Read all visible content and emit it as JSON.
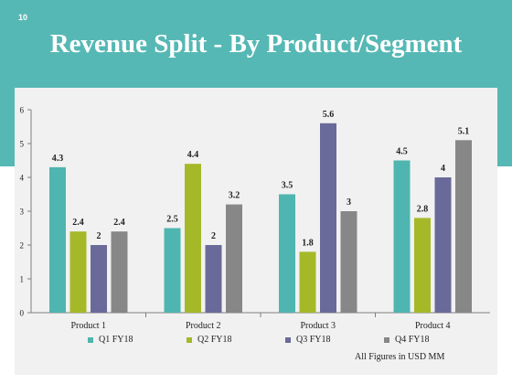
{
  "slide": {
    "number": "10",
    "title": "Revenue Split - By Product/Segment",
    "footnote": "All Figures in USD MM"
  },
  "colors": {
    "header": "#56b8b4",
    "panel": "#f1f1f1"
  },
  "chart_data": {
    "type": "bar",
    "title": "",
    "xlabel": "",
    "ylabel": "",
    "categories": [
      "Product 1",
      "Product 2",
      "Product 3",
      "Product 4"
    ],
    "ylim": [
      0,
      6
    ],
    "yticks": [
      "0",
      "1",
      "2",
      "3",
      "4",
      "5",
      "6"
    ],
    "grid": false,
    "legend_position": "bottom",
    "series": [
      {
        "name": "Q1 FY18",
        "color": "#4fb5b0",
        "values": [
          4.3,
          2.5,
          3.5,
          4.5
        ],
        "labels": [
          "4.3",
          "2.5",
          "3.5",
          "4.5"
        ]
      },
      {
        "name": "Q2 FY18",
        "color": "#a5b928",
        "values": [
          2.4,
          4.4,
          1.8,
          2.8
        ],
        "labels": [
          "2.4",
          "4.4",
          "1.8",
          "2.8"
        ]
      },
      {
        "name": "Q3 FY18",
        "color": "#6a6a9a",
        "values": [
          2,
          2,
          5.6,
          4
        ],
        "labels": [
          "2",
          "2",
          "5.6",
          "4"
        ]
      },
      {
        "name": "Q4 FY18",
        "color": "#878787",
        "values": [
          2.4,
          3.2,
          3,
          5.1
        ],
        "labels": [
          "2.4",
          "3.2",
          "3",
          "5.1"
        ]
      }
    ]
  }
}
